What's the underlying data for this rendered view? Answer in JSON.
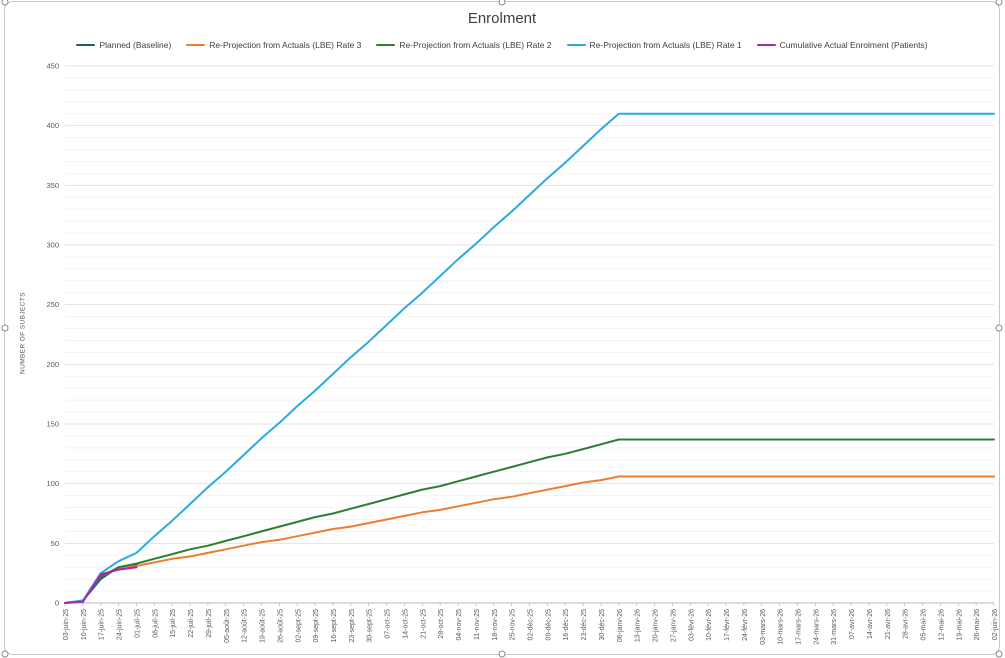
{
  "chart_data": {
    "type": "line",
    "title": "Enrolment",
    "ylabel": "NUMBER OF SUBJECTS",
    "ylim": [
      0,
      450
    ],
    "ytick_step": 50,
    "minor_gridline_step": 10,
    "grid": true,
    "legend_position": "top",
    "categories": [
      "03-juin-25",
      "10-juin-25",
      "17-juin-25",
      "24-juin-25",
      "01-juil-25",
      "08-juil-25",
      "15-juil-25",
      "22-juil-25",
      "29-juil-25",
      "05-août-25",
      "12-août-25",
      "19-août-25",
      "26-août-25",
      "02-sept-25",
      "09-sept-25",
      "16-sept-25",
      "23-sept-25",
      "30-sept-25",
      "07-oct-25",
      "14-oct-25",
      "21-oct-25",
      "28-oct-25",
      "04-nov-25",
      "11-nov-25",
      "18-nov-25",
      "25-nov-25",
      "02-déc-25",
      "09-déc-25",
      "16-déc-25",
      "23-déc-25",
      "30-déc-25",
      "06-janv-26",
      "13-janv-26",
      "20-janv-26",
      "27-janv-26",
      "03-févr-26",
      "10-févr-26",
      "17-févr-26",
      "24-févr-26",
      "03-mars-26",
      "10-mars-26",
      "17-mars-26",
      "24-mars-26",
      "31-mars-26",
      "07-avr-26",
      "14-avr-26",
      "21-avr-26",
      "28-avr-26",
      "05-mai-26",
      "12-mai-26",
      "19-mai-26",
      "26-mai-26",
      "02-juin-26"
    ],
    "series": [
      {
        "name": "Planned (Baseline)",
        "color": "#1F5C73",
        "values": [
          0,
          2,
          20,
          30,
          32,
          null,
          null,
          null,
          null,
          null,
          null,
          null,
          null,
          null,
          null,
          null,
          null,
          null,
          null,
          null,
          null,
          null,
          null,
          null,
          null,
          null,
          null,
          null,
          null,
          null,
          null,
          null,
          null,
          null,
          null,
          null,
          null,
          null,
          null,
          null,
          null,
          null,
          null,
          null,
          null,
          null,
          null,
          null,
          null,
          null,
          null,
          null,
          null
        ]
      },
      {
        "name": "Re-Projection from Actuals (LBE) Rate 3",
        "color": "#ED7D31",
        "values": [
          0,
          2,
          22,
          29,
          31,
          34,
          37,
          39,
          42,
          45,
          48,
          51,
          53,
          56,
          59,
          62,
          64,
          67,
          70,
          73,
          76,
          78,
          81,
          84,
          87,
          89,
          92,
          95,
          98,
          101,
          103,
          106,
          106,
          106,
          106,
          106,
          106,
          106,
          106,
          106,
          106,
          106,
          106,
          106,
          106,
          106,
          106,
          106,
          106,
          106,
          106,
          106,
          106
        ]
      },
      {
        "name": "Re-Projection from Actuals (LBE) Rate 2",
        "color": "#2E7D32",
        "values": [
          0,
          2,
          22,
          30,
          33,
          37,
          41,
          45,
          48,
          52,
          56,
          60,
          64,
          68,
          72,
          75,
          79,
          83,
          87,
          91,
          95,
          98,
          102,
          106,
          110,
          114,
          118,
          122,
          125,
          129,
          133,
          137,
          137,
          137,
          137,
          137,
          137,
          137,
          137,
          137,
          137,
          137,
          137,
          137,
          137,
          137,
          137,
          137,
          137,
          137,
          137,
          137,
          137
        ]
      },
      {
        "name": "Re-Projection from Actuals (LBE) Rate 1",
        "color": "#29ABE2",
        "values": [
          0,
          2,
          25,
          35,
          42,
          56,
          69,
          83,
          97,
          110,
          124,
          138,
          151,
          165,
          178,
          192,
          206,
          219,
          233,
          247,
          260,
          274,
          288,
          301,
          315,
          328,
          342,
          356,
          369,
          383,
          397,
          410,
          410,
          410,
          410,
          410,
          410,
          410,
          410,
          410,
          410,
          410,
          410,
          410,
          410,
          410,
          410,
          410,
          410,
          410,
          410,
          410,
          410
        ]
      },
      {
        "name": "Cumulative Actual Enrolment (Patients)",
        "color": "#A826AD",
        "values": [
          0,
          1,
          24,
          28,
          30,
          null,
          null,
          null,
          null,
          null,
          null,
          null,
          null,
          null,
          null,
          null,
          null,
          null,
          null,
          null,
          null,
          null,
          null,
          null,
          null,
          null,
          null,
          null,
          null,
          null,
          null,
          null,
          null,
          null,
          null,
          null,
          null,
          null,
          null,
          null,
          null,
          null,
          null,
          null,
          null,
          null,
          null,
          null,
          null,
          null,
          null,
          null,
          null
        ]
      }
    ]
  }
}
